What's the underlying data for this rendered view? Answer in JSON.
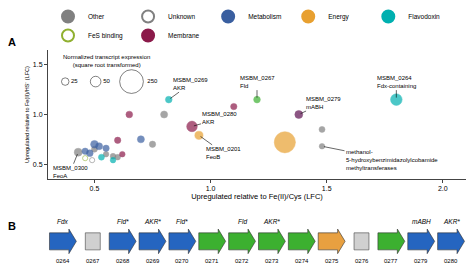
{
  "chart_data": [
    {
      "type": "scatter",
      "panel_label": "A",
      "xlabel": "Upregulated relative to Fe(II)/Cys (LFC)",
      "ylabel": "Upregulated relative to Fe(II)/HS⁻ (LFC)",
      "xlim": [
        0.3,
        2.1
      ],
      "ylim": [
        0.35,
        1.65
      ],
      "xticks": [
        0.5,
        {
          "value": 1.0,
          "label": "1.0"
        },
        1.5,
        {
          "value": 2.0,
          "label": "2.0"
        }
      ],
      "yticks": [
        0.5,
        {
          "value": 1.0,
          "label": "1.0"
        },
        1.5
      ],
      "grid": false,
      "legend": "top",
      "series": [
        {
          "name": "Other",
          "color": "#808080",
          "marker": "filled",
          "x": [
            0.43,
            0.5,
            0.55,
            0.58,
            0.6,
            0.75,
            0.8,
            1.48,
            1.48
          ],
          "y": [
            0.62,
            0.65,
            0.6,
            0.58,
            0.57,
            0.7,
            1.0,
            0.85,
            0.68
          ],
          "sizes": [
            28,
            16,
            14,
            14,
            14,
            18,
            22,
            16,
            14
          ],
          "colors": [
            "#808080",
            "#808080",
            "#808080",
            "#808080",
            "#808080",
            "#808080",
            "#808080",
            "#808080",
            "#808080"
          ]
        },
        {
          "name": "Unknown",
          "color": "#808080",
          "marker": "open",
          "x": [
            0.49
          ],
          "y": [
            0.54
          ],
          "sizes": [
            12
          ],
          "colors": [
            "#808080"
          ]
        },
        {
          "name": "Metabolism",
          "color": "#3a5fa0",
          "marker": "filled",
          "x": [
            0.52,
            0.5,
            0.55,
            0.48,
            0.46,
            0.7
          ],
          "y": [
            0.68,
            0.7,
            0.66,
            0.61,
            0.63,
            0.75
          ],
          "sizes": [
            22,
            26,
            18,
            20,
            18,
            22
          ],
          "colors": [
            "#3a5fa0",
            "#3a5fa0",
            "#3a5fa0",
            "#3a5fa0",
            "#3a5fa0",
            "#3a5fa0"
          ]
        },
        {
          "name": "Energy",
          "color": "#e8a030",
          "marker": "filled",
          "x": [
            0.95,
            1.32
          ],
          "y": [
            0.79,
            0.72
          ],
          "sizes": [
            30,
            200
          ],
          "colors": [
            "#e8a030",
            "#e8a030"
          ]
        },
        {
          "name": "Flavodoxin",
          "color": "#00b0b0",
          "marker": "filled",
          "x": [
            0.53,
            0.58,
            0.82,
            1.2,
            1.8
          ],
          "y": [
            0.57,
            0.54,
            1.15,
            1.15,
            1.15
          ],
          "sizes": [
            16,
            14,
            20,
            20,
            60
          ],
          "colors": [
            "#00b0b0",
            "#00b0b0",
            "#00b0b0",
            "#3cb030",
            "#00b0b0"
          ]
        },
        {
          "name": "FeS binding",
          "color": "#90b030",
          "marker": "open",
          "x": [
            0.46
          ],
          "y": [
            0.56
          ],
          "sizes": [
            12
          ],
          "colors": [
            "#90b030"
          ]
        },
        {
          "name": "Membrane",
          "color": "#8b1a4a",
          "marker": "filled",
          "x": [
            0.62,
            0.6,
            0.65,
            0.92,
            1.1,
            1.38
          ],
          "y": [
            0.6,
            0.74,
            1.0,
            0.88,
            1.08,
            1.0
          ],
          "sizes": [
            14,
            18,
            20,
            50,
            18,
            28
          ],
          "colors": [
            "#8b1a4a",
            "#8b1a4a",
            "#8b1a4a",
            "#8b1a4a",
            "#8b1a4a",
            "#5c1050"
          ]
        }
      ],
      "annotations": [
        {
          "text": "MSBM_0300\nFeoA",
          "x": 0.43,
          "y": 0.62
        },
        {
          "text": "MSBM_0269\nAKR",
          "x": 0.82,
          "y": 1.15
        },
        {
          "text": "MSBM_0280\nAKR",
          "x": 0.92,
          "y": 0.88
        },
        {
          "text": "MSBM_0201\nFeoB",
          "x": 0.95,
          "y": 0.79
        },
        {
          "text": "MSBM_0267\nFld",
          "x": 1.2,
          "y": 1.15
        },
        {
          "text": "MSBM_0279\nmABH",
          "x": 1.38,
          "y": 1.0
        },
        {
          "text": "MSBM_0264\nFdx-containing",
          "x": 1.8,
          "y": 1.15
        },
        {
          "text": "methanol-\n5-hydroxybenzimidazolylcobamide\nmethyltransferases",
          "x": 1.48,
          "y": 0.68
        }
      ],
      "size_legend": {
        "title": "Normalized transcript expression\n(square root transformed)",
        "sizes": [
          25,
          50,
          250
        ]
      }
    },
    {
      "type": "gene_diagram",
      "panel_label": "B",
      "genes": [
        {
          "name": "Fdx",
          "id": "0264",
          "color": "#2565c0",
          "shape": "arrow"
        },
        {
          "id": "0267",
          "color": "#d0d0d0",
          "shape": "box"
        },
        {
          "name": "Fld*",
          "id": "0268",
          "color": "#2565c0",
          "shape": "arrow"
        },
        {
          "name": "AKR*",
          "id": "0269",
          "color": "#2565c0",
          "shape": "arrow"
        },
        {
          "name": "Fld*",
          "id": "0270",
          "color": "#2565c0",
          "shape": "arrow"
        },
        {
          "id": "0271",
          "color": "#3cb030",
          "shape": "arrow"
        },
        {
          "name": "Fld",
          "id": "0272",
          "color": "#3cb030",
          "shape": "arrow"
        },
        {
          "name": "AKR*",
          "id": "0273",
          "color": "#3cb030",
          "shape": "arrow"
        },
        {
          "id": "0274",
          "color": "#3cb030",
          "shape": "arrow"
        },
        {
          "id": "0275",
          "color": "#e8a040",
          "shape": "arrow"
        },
        {
          "id": "0276",
          "color": "#d0d0d0",
          "shape": "box"
        },
        {
          "id": "0277",
          "color": "#3cb030",
          "shape": "arrow"
        },
        {
          "name": "mABH",
          "id": "0279",
          "color": "#2565c0",
          "shape": "arrow"
        },
        {
          "name": "AKR*",
          "id": "0280",
          "color": "#2565c0",
          "shape": "arrow"
        }
      ]
    }
  ]
}
